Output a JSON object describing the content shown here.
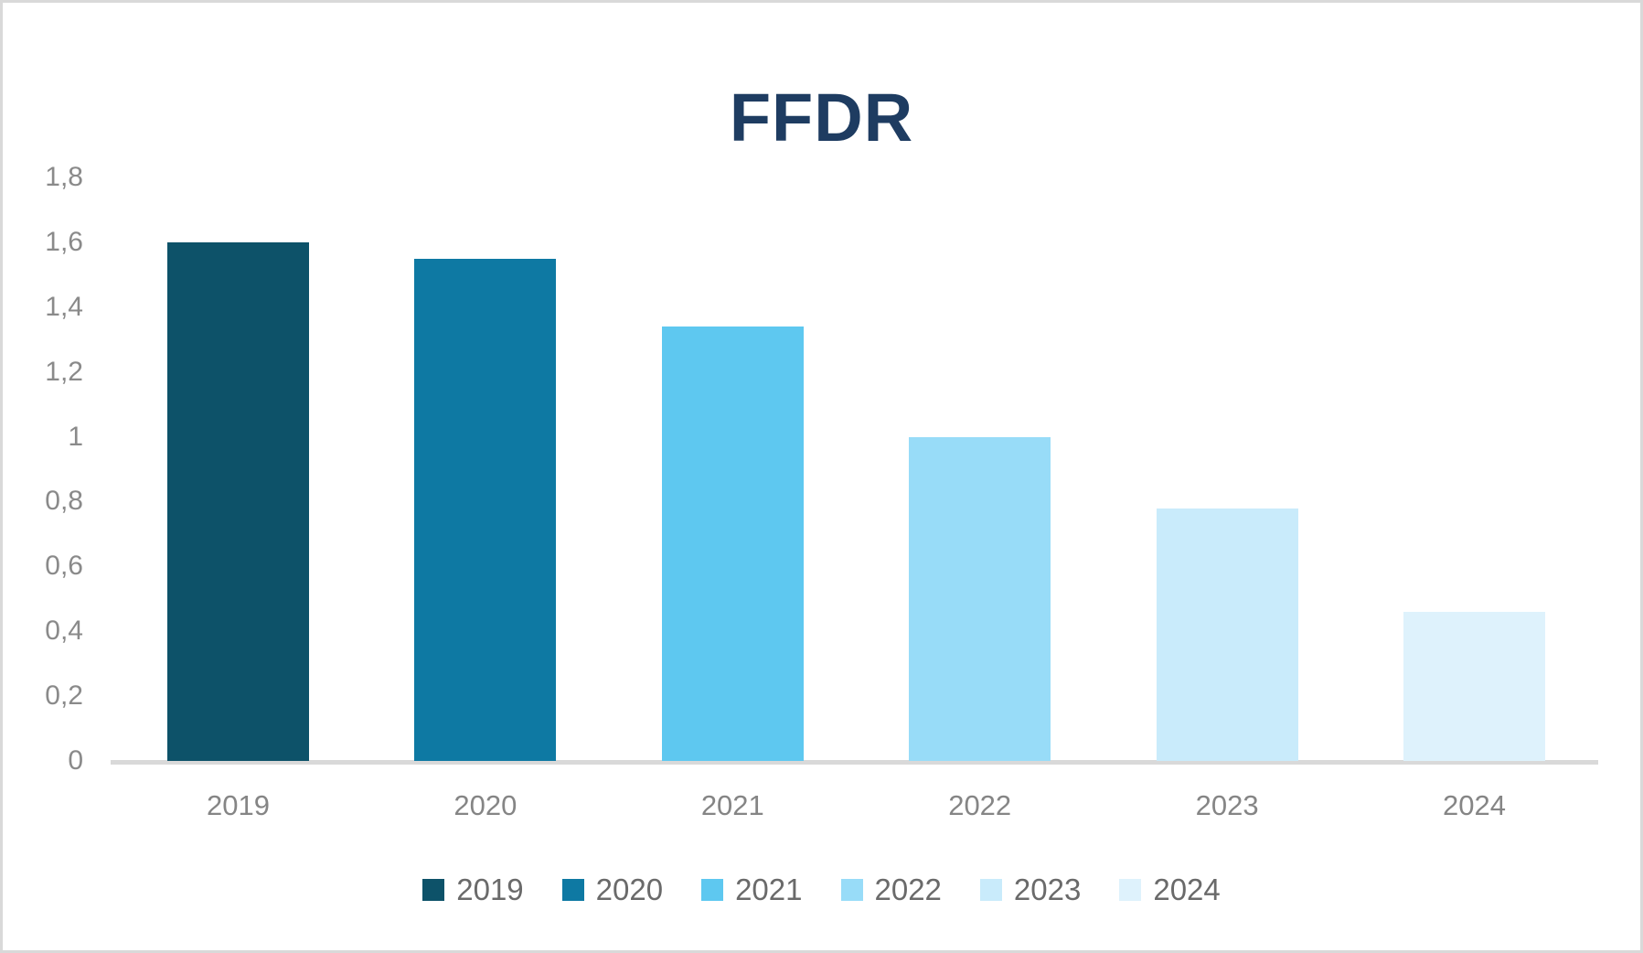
{
  "chart_data": {
    "type": "bar",
    "title": "FFDR",
    "categories": [
      "2019",
      "2020",
      "2021",
      "2022",
      "2023",
      "2024"
    ],
    "values": [
      1.6,
      1.55,
      1.34,
      1.0,
      0.78,
      0.46
    ],
    "bar_colors": [
      "#0d5269",
      "#0e79a3",
      "#5ec8f0",
      "#98dcf8",
      "#c9ebfb",
      "#def2fc"
    ],
    "xlabel": "",
    "ylabel": "",
    "ylim": [
      0,
      1.8
    ],
    "y_ticks": [
      {
        "label": "1,8",
        "value": 1.8
      },
      {
        "label": "1,6",
        "value": 1.6
      },
      {
        "label": "1,4",
        "value": 1.4
      },
      {
        "label": "1,2",
        "value": 1.2
      },
      {
        "label": "1",
        "value": 1.0
      },
      {
        "label": "0,8",
        "value": 0.8
      },
      {
        "label": "0,6",
        "value": 0.6
      },
      {
        "label": "0,4",
        "value": 0.4
      },
      {
        "label": "0,2",
        "value": 0.2
      },
      {
        "label": "0",
        "value": 0.0
      }
    ],
    "grid": false,
    "decimal_separator": ",",
    "legend_position": "bottom",
    "legend_entries": [
      "2019",
      "2020",
      "2021",
      "2022",
      "2023",
      "2024"
    ]
  },
  "colors": {
    "title": "#1e3c61",
    "axis_line": "#d9d9d9",
    "tick_label": "#8a8a8a",
    "x_label": "#858585",
    "legend_label": "#6a6a6a",
    "background": "#ffffff",
    "border": "#d9d9d9"
  }
}
